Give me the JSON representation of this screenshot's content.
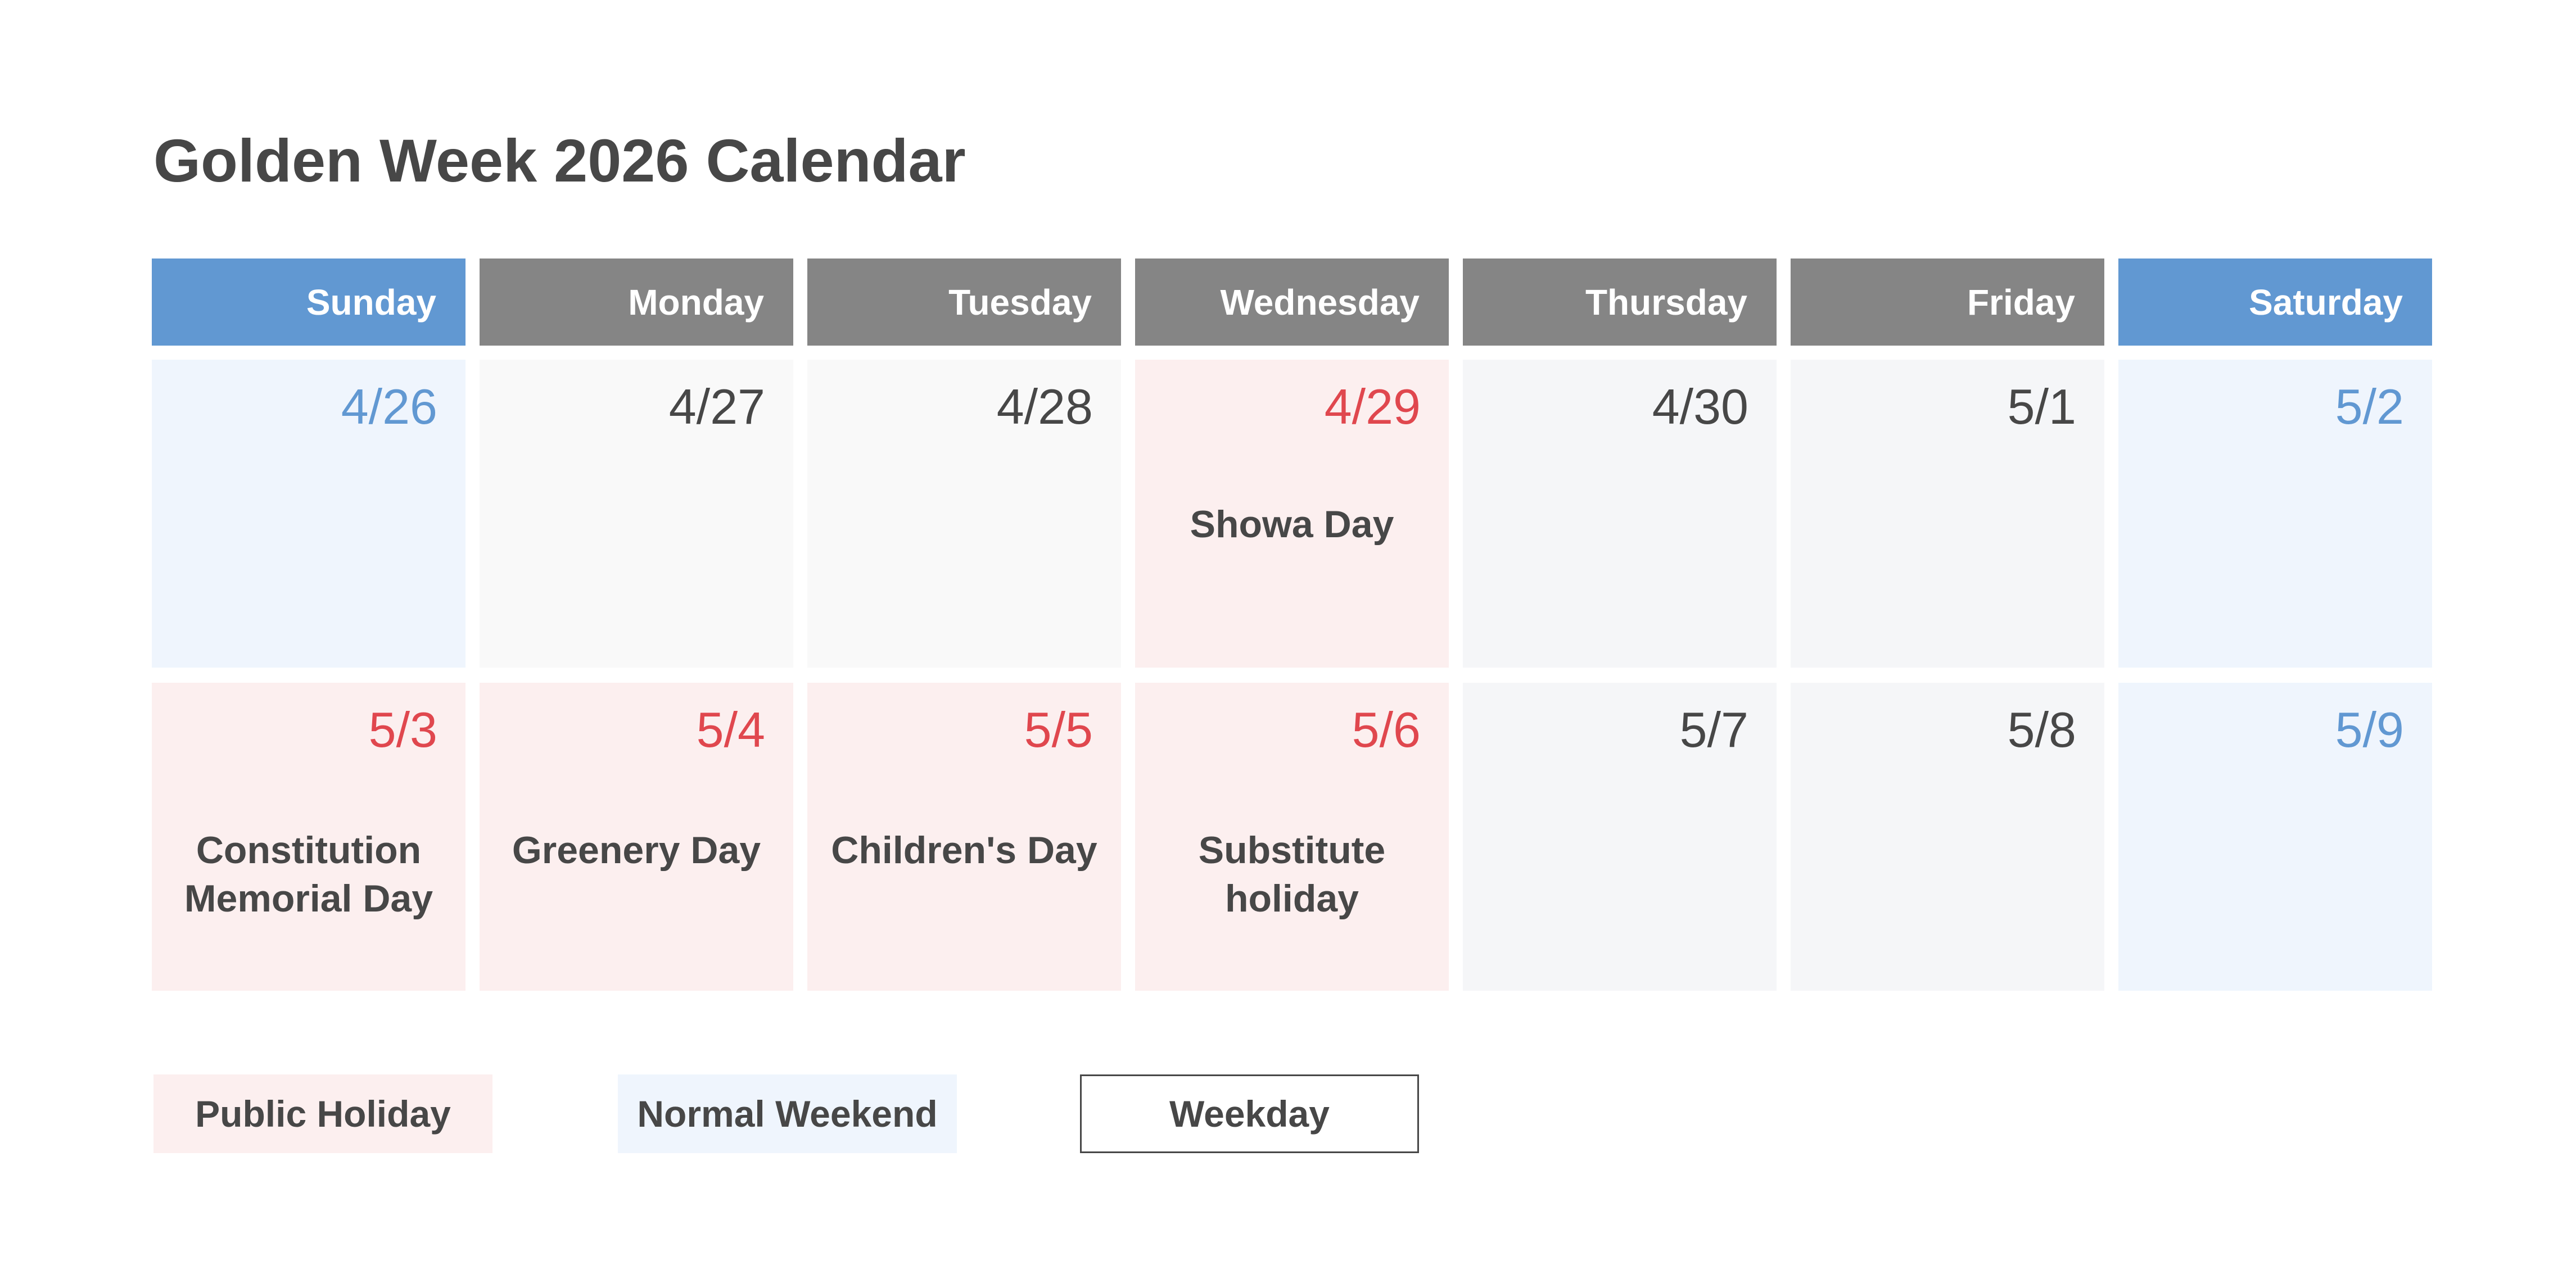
{
  "title": "Golden Week 2026 Calendar",
  "weekdays": [
    "Sunday",
    "Monday",
    "Tuesday",
    "Wednesday",
    "Thursday",
    "Friday",
    "Saturday"
  ],
  "weeks": [
    [
      {
        "date": "4/26",
        "holiday": ""
      },
      {
        "date": "4/27",
        "holiday": ""
      },
      {
        "date": "4/28",
        "holiday": ""
      },
      {
        "date": "4/29",
        "holiday": "Showa Day"
      },
      {
        "date": "4/30",
        "holiday": ""
      },
      {
        "date": "5/1",
        "holiday": ""
      },
      {
        "date": "5/2",
        "holiday": ""
      }
    ],
    [
      {
        "date": "5/3",
        "holiday": "Constitution Memorial Day"
      },
      {
        "date": "5/4",
        "holiday": "Greenery Day"
      },
      {
        "date": "5/5",
        "holiday": "Children's Day"
      },
      {
        "date": "5/6",
        "holiday": "Substitute holiday"
      },
      {
        "date": "5/7",
        "holiday": ""
      },
      {
        "date": "5/8",
        "holiday": ""
      },
      {
        "date": "5/9",
        "holiday": ""
      }
    ]
  ],
  "legend": {
    "public_holiday": "Public Holiday",
    "normal_weekend": "Normal Weekend",
    "weekday": "Weekday"
  },
  "colors": {
    "weekend_header": "#6198d2",
    "weekday_header": "#858585",
    "holiday_bg": "#fcefef",
    "weekend_bg": "#eff5fd",
    "holiday_text": "#e0474e",
    "weekend_text": "#6198d2",
    "text": "#474747"
  }
}
